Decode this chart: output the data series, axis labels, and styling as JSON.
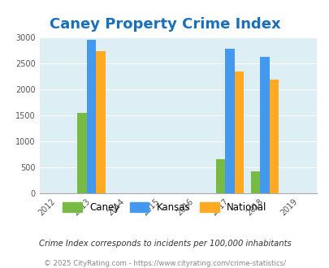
{
  "title": "Caney Property Crime Index",
  "title_color": "#1a6fba",
  "title_fontsize": 13,
  "data": {
    "2013": {
      "caney": 1540,
      "kansas": 2950,
      "national": 2730
    },
    "2017": {
      "caney": 645,
      "kansas": 2790,
      "national": 2350
    },
    "2018": {
      "caney": 415,
      "kansas": 2620,
      "national": 2185
    }
  },
  "caney_color": "#77bb44",
  "kansas_color": "#4499ee",
  "national_color": "#ffaa22",
  "plot_bg": "#ddeef5",
  "ylim": [
    0,
    3000
  ],
  "yticks": [
    0,
    500,
    1000,
    1500,
    2000,
    2500,
    3000
  ],
  "xlim": [
    2011.5,
    2019.5
  ],
  "xticks": [
    2012,
    2013,
    2014,
    2015,
    2016,
    2017,
    2018,
    2019
  ],
  "bar_width": 0.27,
  "footnote1": "Crime Index corresponds to incidents per 100,000 inhabitants",
  "footnote2": "© 2025 CityRating.com - https://www.cityrating.com/crime-statistics/",
  "footnote1_color": "#333333",
  "footnote2_color": "#888888",
  "grid_color": "#ffffff",
  "tick_color": "#555555"
}
